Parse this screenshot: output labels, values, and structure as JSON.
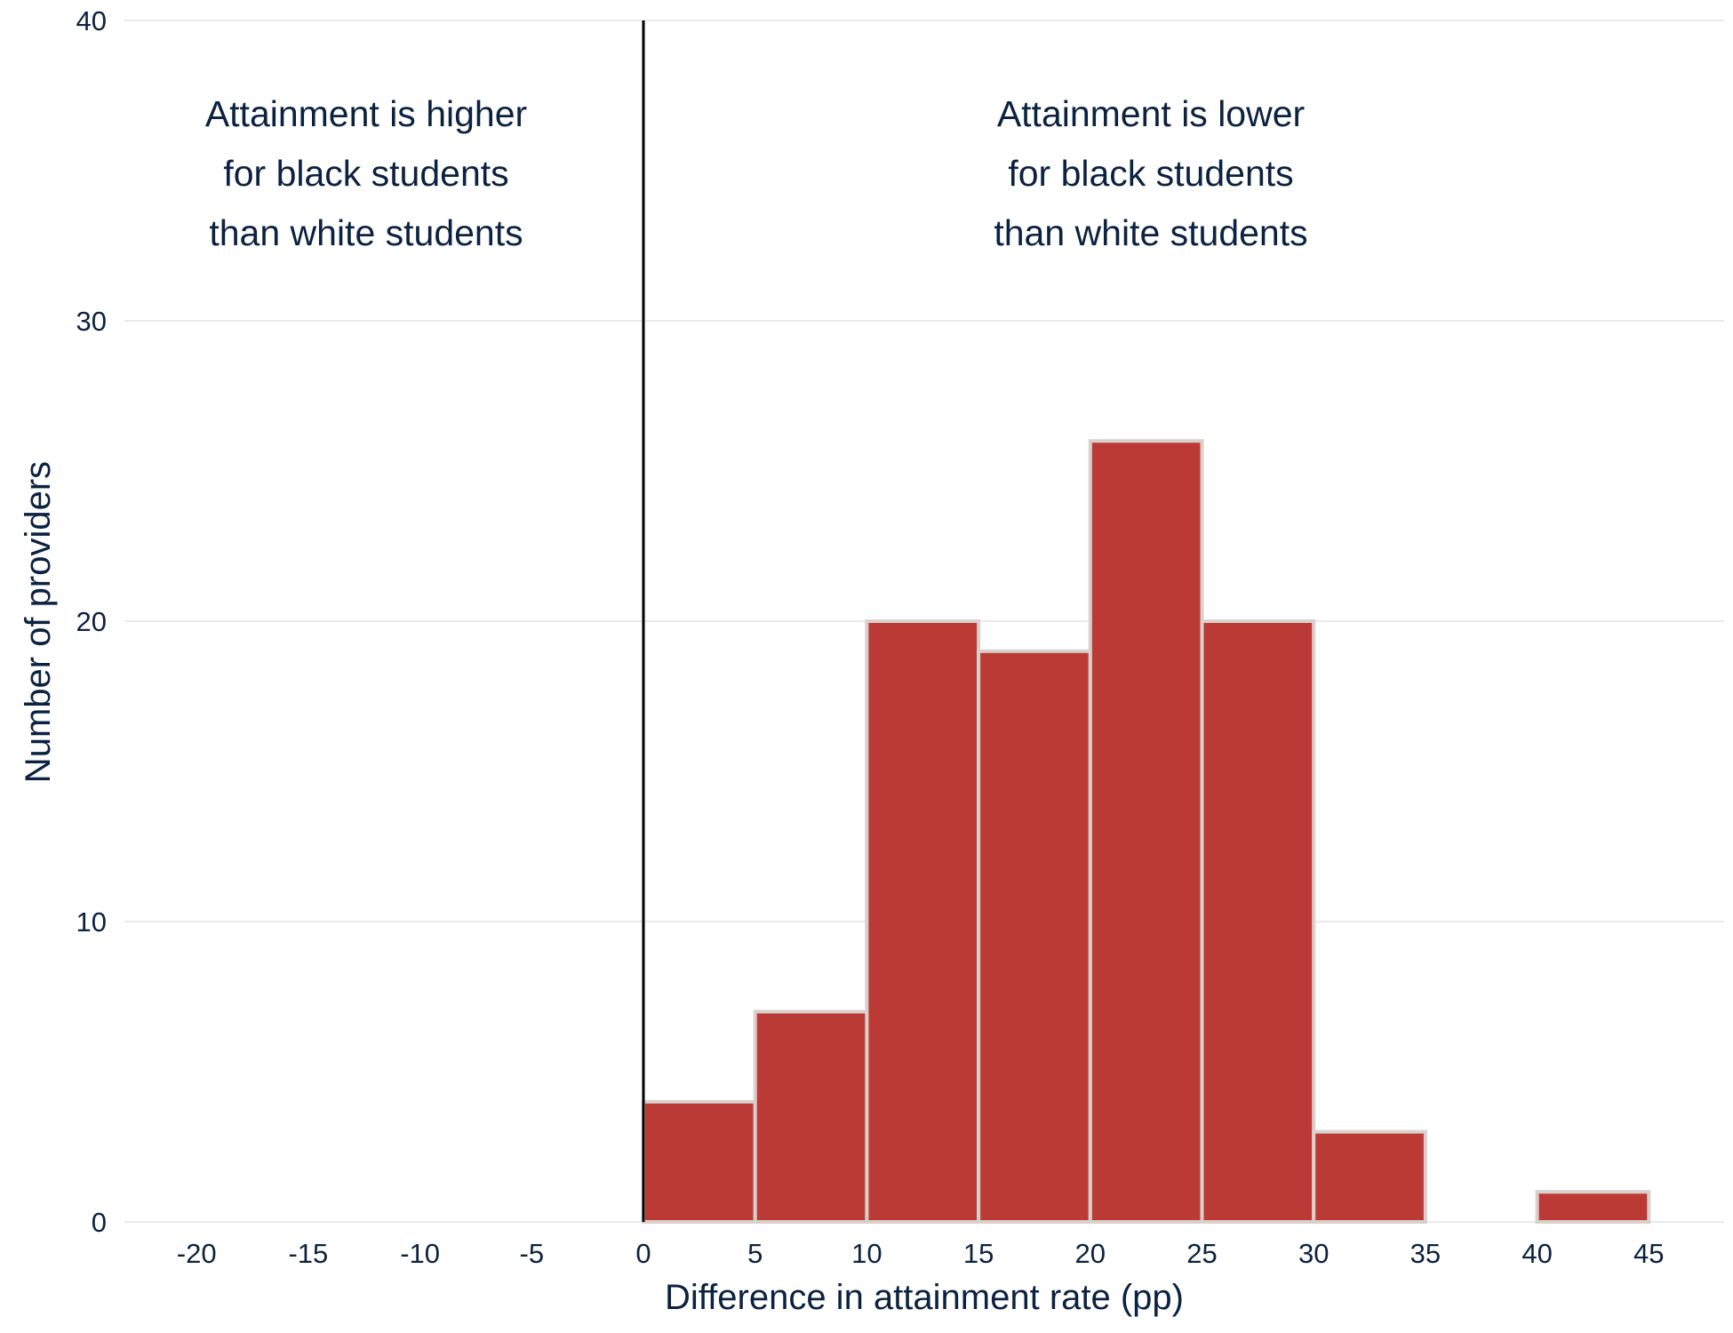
{
  "chart_data": {
    "type": "bar",
    "subtype": "histogram",
    "xlabel": "Difference in attainment rate (pp)",
    "ylabel": "Number of providers",
    "ylim": [
      0,
      40
    ],
    "xlim": [
      -20,
      45
    ],
    "y_ticks": [
      0,
      10,
      20,
      30,
      40
    ],
    "x_ticks": [
      -20,
      -15,
      -10,
      -5,
      0,
      5,
      10,
      15,
      20,
      25,
      30,
      35,
      40,
      45
    ],
    "grid": "horizontal",
    "bin_width": 5,
    "bins": [
      {
        "start": -5,
        "end": 0,
        "value": 0
      },
      {
        "start": 0,
        "end": 5,
        "value": 4
      },
      {
        "start": 5,
        "end": 10,
        "value": 7
      },
      {
        "start": 10,
        "end": 15,
        "value": 20
      },
      {
        "start": 15,
        "end": 20,
        "value": 19
      },
      {
        "start": 20,
        "end": 25,
        "value": 26
      },
      {
        "start": 25,
        "end": 30,
        "value": 20
      },
      {
        "start": 30,
        "end": 35,
        "value": 3
      },
      {
        "start": 35,
        "end": 40,
        "value": 0
      },
      {
        "start": 40,
        "end": 45,
        "value": 1
      }
    ],
    "reference_line_x": 0,
    "annotations": [
      {
        "lines": [
          "Attainment is higher",
          "for black students",
          "than white students"
        ]
      },
      {
        "lines": [
          "Attainment is lower",
          "for black students",
          "than white students"
        ]
      }
    ],
    "colors": {
      "bar_fill": "#bc3a36",
      "bar_edge": "#d9d0cc",
      "text": "#0b2240",
      "grid": "#e3e3e3",
      "reference_line": "#000000"
    }
  }
}
